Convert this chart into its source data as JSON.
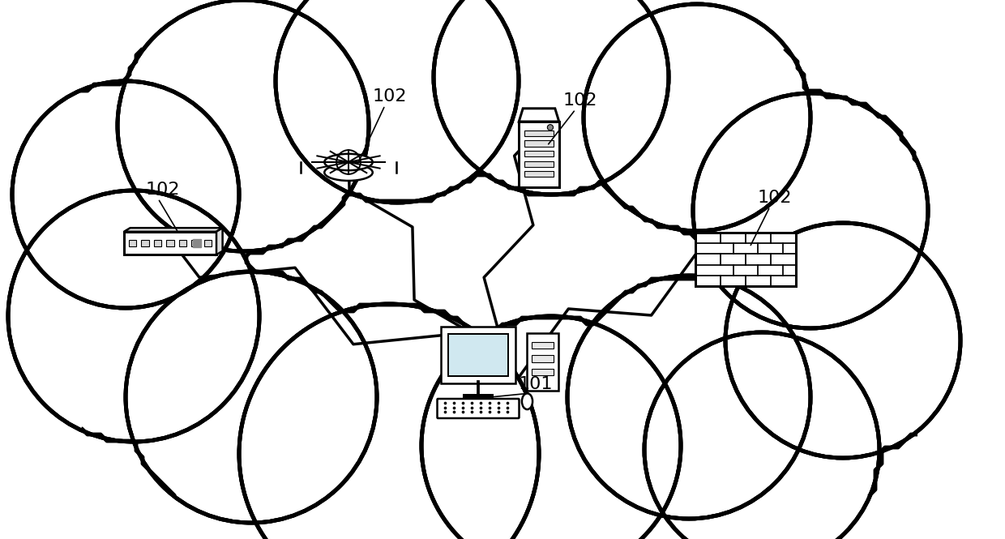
{
  "background_color": "#ffffff",
  "cloud_color": "#ffffff",
  "cloud_edge_color": "#000000",
  "cloud_edge_width": 3.5,
  "line_color": "#000000",
  "label_101": "101",
  "label_102": "102",
  "figsize": [
    12.4,
    6.65
  ],
  "dpi": 100
}
